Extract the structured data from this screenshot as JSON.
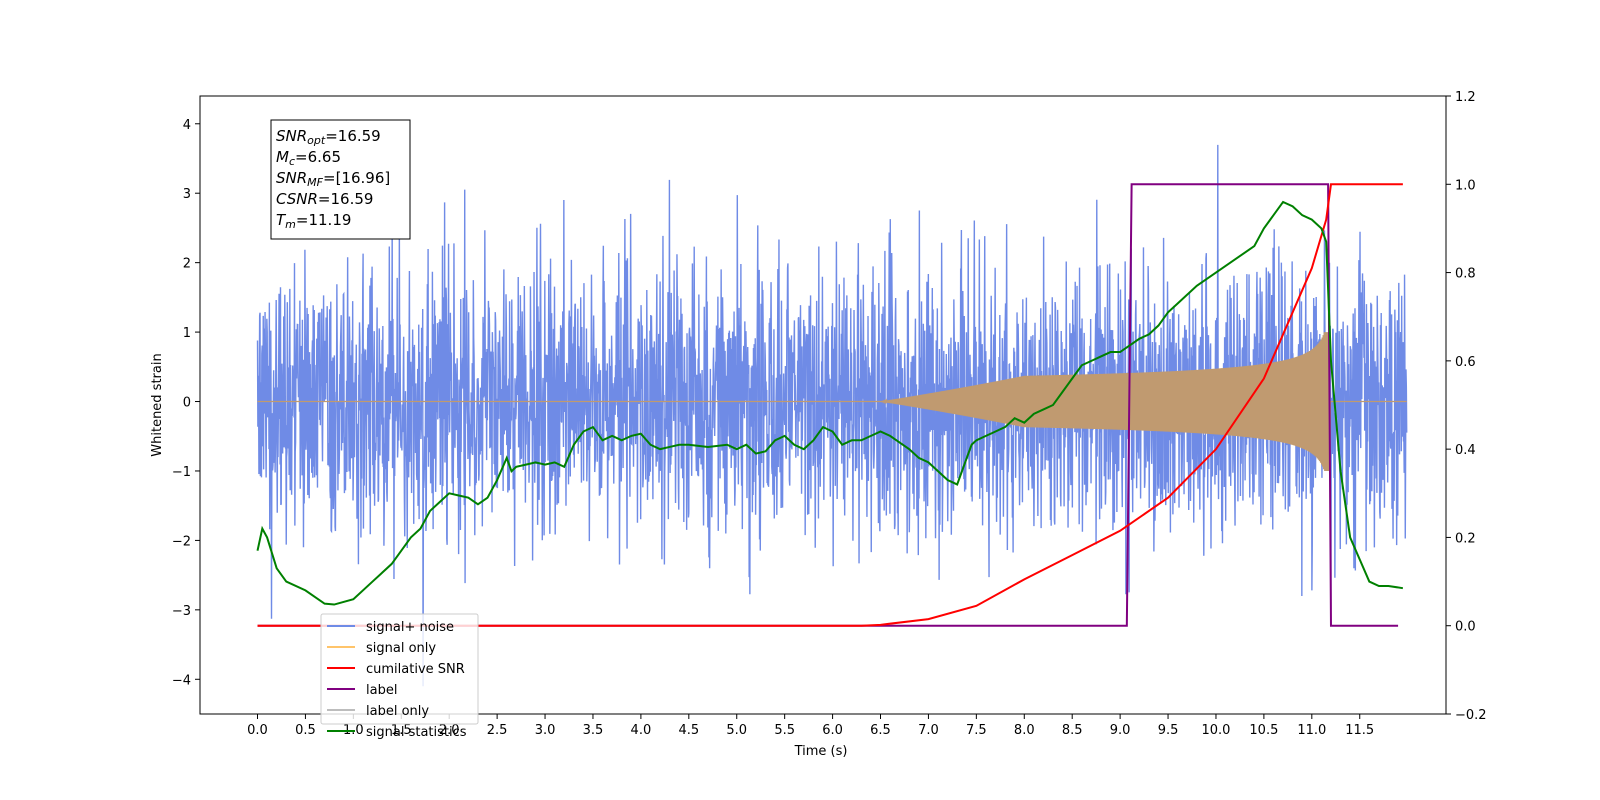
{
  "chart_data": {
    "type": "line",
    "xlabel": "Time (s)",
    "ylabel": "Whitened strain",
    "xlim": [
      -0.6,
      12.4
    ],
    "ylim": [
      -4.5,
      4.4
    ],
    "y2lim": [
      -0.2,
      1.2
    ],
    "x_ticks": [
      "0.0",
      "0.5",
      "1.0",
      "1.5",
      "2.0",
      "2.5",
      "3.0",
      "3.5",
      "4.0",
      "4.5",
      "5.0",
      "5.5",
      "6.0",
      "6.5",
      "7.0",
      "7.5",
      "8.0",
      "8.5",
      "9.0",
      "9.5",
      "10.0",
      "10.5",
      "11.0",
      "11.5"
    ],
    "y_ticks": [
      "4",
      "3",
      "2",
      "1",
      "0",
      "−1",
      "−2",
      "−3",
      "−4"
    ],
    "y2_ticks": [
      "1.2",
      "1.0",
      "0.8",
      "0.6",
      "0.4",
      "0.2",
      "0.0",
      "−0.2"
    ],
    "annotation": [
      {
        "base": "SNR",
        "sub": "opt",
        "rest": "=16.59"
      },
      {
        "base": "M",
        "sub": "c",
        "rest": "=6.65"
      },
      {
        "base": "SNR",
        "sub": "MF",
        "rest": "=[16.96]"
      },
      {
        "base": "CSNR",
        "sub": "",
        "rest": "=16.59"
      },
      {
        "base": "T",
        "sub": "m",
        "rest": "=11.19"
      }
    ],
    "legend_position": "lower-left",
    "legend": [
      {
        "name": "signal+ noise",
        "color": "#6f8be6"
      },
      {
        "name": "signal only",
        "color": "#ffc46a"
      },
      {
        "name": "cumilative SNR",
        "color": "#ff0000"
      },
      {
        "name": "label",
        "color": "#800080"
      },
      {
        "name": "label only",
        "color": "#bdbdbd"
      },
      {
        "name": "signal statistics",
        "color": "#008000"
      }
    ],
    "noise": {
      "t_start": 0.0,
      "t_end": 11.99,
      "envelope": 2.2,
      "max": 4.05,
      "min": -4.1
    },
    "chirp": {
      "t_start": 6.5,
      "t_merger": 11.19,
      "peak_amplitude": 1.0
    },
    "cumulative_snr": {
      "x": [
        0.0,
        6.3,
        6.5,
        7.0,
        7.5,
        8.0,
        8.5,
        9.0,
        9.5,
        10.0,
        10.5,
        11.0,
        11.15,
        11.2,
        11.95
      ],
      "y": [
        0.0,
        0.0,
        0.002,
        0.015,
        0.045,
        0.105,
        0.16,
        0.215,
        0.29,
        0.4,
        0.56,
        0.81,
        0.92,
        1.0,
        1.0
      ]
    },
    "label": {
      "x": [
        0.0,
        9.07,
        9.12,
        11.17,
        11.2,
        11.9
      ],
      "y": [
        0.0,
        0.0,
        1.0,
        1.0,
        0.0,
        0.0
      ]
    },
    "signal_statistics": {
      "x": [
        0.0,
        0.05,
        0.1,
        0.2,
        0.3,
        0.5,
        0.7,
        0.8,
        1.0,
        1.2,
        1.4,
        1.5,
        1.6,
        1.7,
        1.8,
        1.9,
        2.0,
        2.1,
        2.2,
        2.3,
        2.4,
        2.5,
        2.6,
        2.65,
        2.7,
        2.8,
        2.9,
        3.0,
        3.1,
        3.2,
        3.3,
        3.4,
        3.5,
        3.6,
        3.7,
        3.8,
        3.9,
        4.0,
        4.1,
        4.2,
        4.3,
        4.4,
        4.5,
        4.7,
        4.9,
        5.0,
        5.1,
        5.2,
        5.3,
        5.4,
        5.5,
        5.6,
        5.7,
        5.8,
        5.9,
        6.0,
        6.1,
        6.2,
        6.3,
        6.4,
        6.5,
        6.6,
        6.7,
        6.8,
        6.9,
        7.0,
        7.2,
        7.3,
        7.4,
        7.45,
        7.5,
        7.6,
        7.7,
        7.8,
        7.9,
        8.0,
        8.1,
        8.2,
        8.3,
        8.4,
        8.5,
        8.6,
        8.7,
        8.8,
        8.9,
        9.0,
        9.2,
        9.3,
        9.4,
        9.5,
        9.6,
        9.8,
        10.0,
        10.2,
        10.4,
        10.5,
        10.6,
        10.7,
        10.8,
        10.9,
        11.0,
        11.1,
        11.15,
        11.2,
        11.3,
        11.4,
        11.5,
        11.6,
        11.7,
        11.8,
        11.95
      ],
      "y": [
        0.17,
        0.22,
        0.2,
        0.13,
        0.1,
        0.08,
        0.05,
        0.048,
        0.06,
        0.1,
        0.14,
        0.17,
        0.2,
        0.22,
        0.26,
        0.28,
        0.3,
        0.295,
        0.29,
        0.275,
        0.29,
        0.33,
        0.38,
        0.35,
        0.36,
        0.365,
        0.37,
        0.365,
        0.37,
        0.36,
        0.41,
        0.44,
        0.45,
        0.42,
        0.43,
        0.42,
        0.43,
        0.435,
        0.41,
        0.4,
        0.405,
        0.41,
        0.41,
        0.405,
        0.41,
        0.4,
        0.41,
        0.39,
        0.395,
        0.42,
        0.43,
        0.41,
        0.4,
        0.42,
        0.45,
        0.44,
        0.41,
        0.42,
        0.42,
        0.43,
        0.44,
        0.43,
        0.415,
        0.4,
        0.38,
        0.37,
        0.33,
        0.32,
        0.38,
        0.41,
        0.42,
        0.43,
        0.44,
        0.45,
        0.47,
        0.46,
        0.48,
        0.49,
        0.5,
        0.53,
        0.56,
        0.59,
        0.6,
        0.61,
        0.62,
        0.62,
        0.65,
        0.66,
        0.68,
        0.71,
        0.73,
        0.77,
        0.8,
        0.83,
        0.86,
        0.9,
        0.93,
        0.96,
        0.95,
        0.93,
        0.92,
        0.9,
        0.87,
        0.6,
        0.35,
        0.2,
        0.15,
        0.1,
        0.09,
        0.09,
        0.085
      ]
    }
  }
}
